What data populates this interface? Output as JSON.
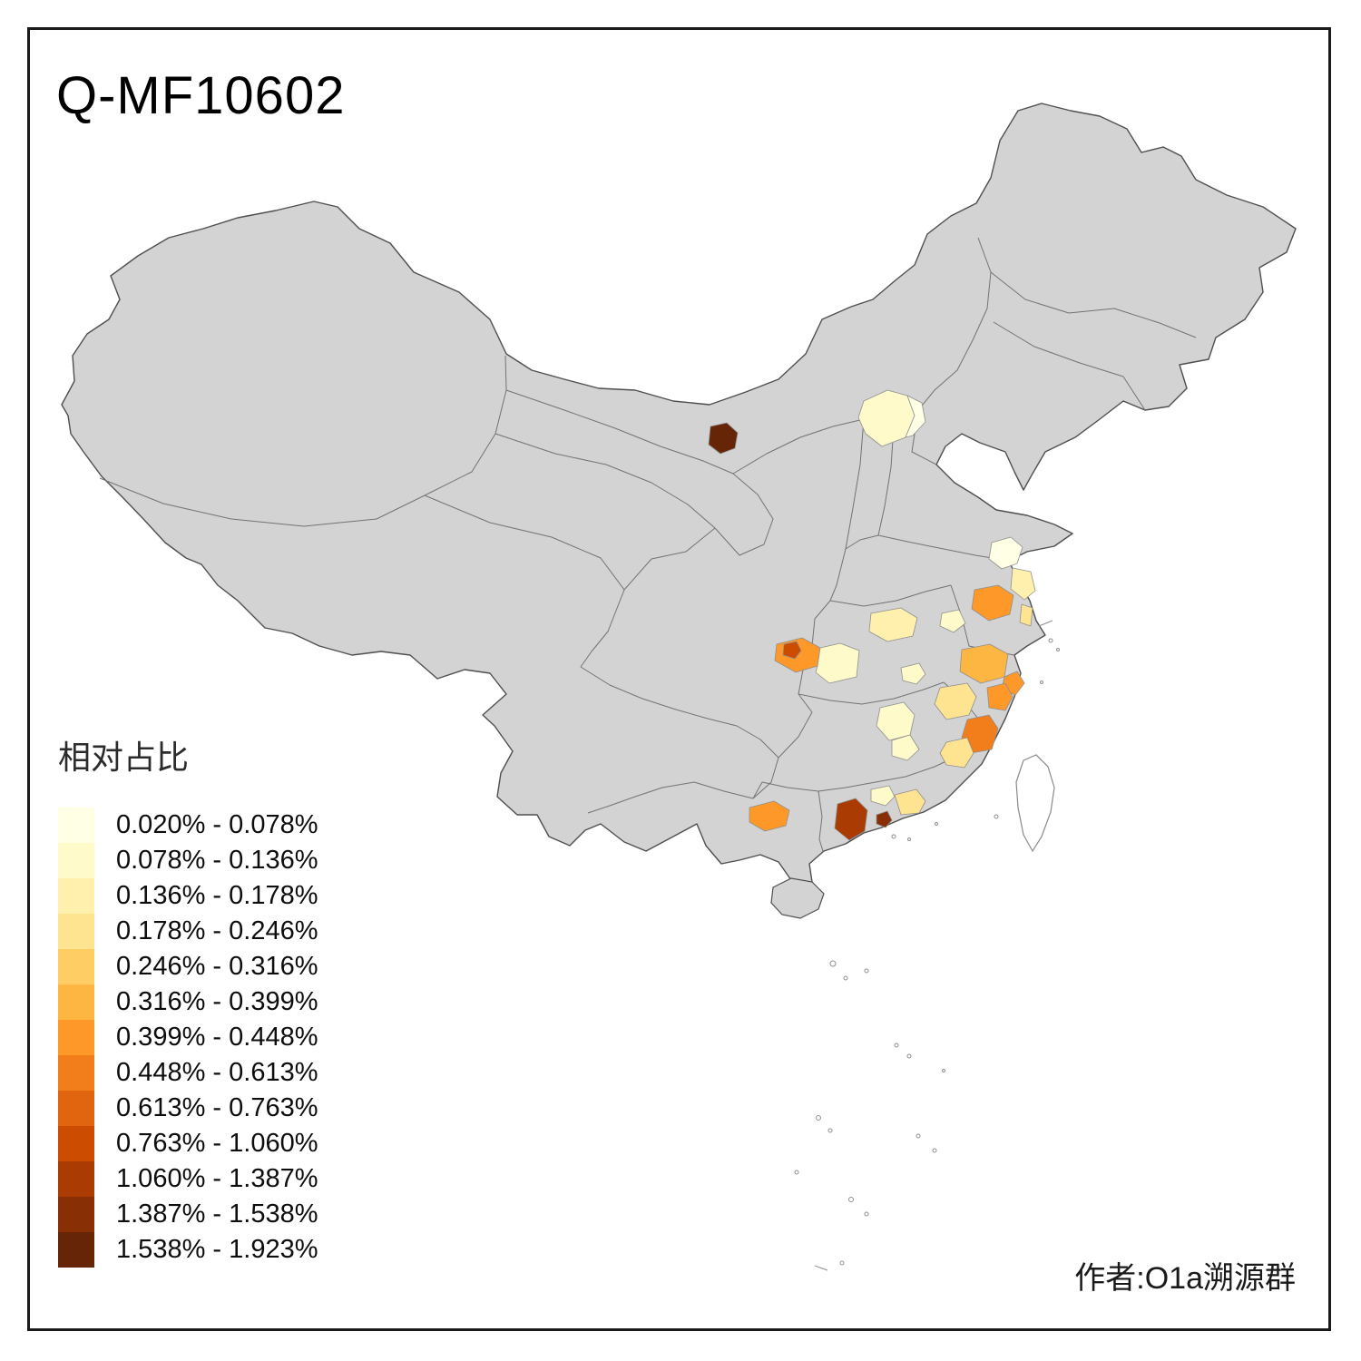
{
  "title": "Q-MF10602",
  "author": "作者:O1a溯源群",
  "legend": {
    "title": "相对占比",
    "items": [
      {
        "label": "0.020% - 0.078%",
        "color": "#FFFFE5"
      },
      {
        "label": "0.078% - 0.136%",
        "color": "#FFFACA"
      },
      {
        "label": "0.136% - 0.178%",
        "color": "#FFF0AE"
      },
      {
        "label": "0.178% - 0.246%",
        "color": "#FEE391"
      },
      {
        "label": "0.246% - 0.316%",
        "color": "#FECE65"
      },
      {
        "label": "0.316% - 0.399%",
        "color": "#FEB642"
      },
      {
        "label": "0.399% - 0.448%",
        "color": "#FE9929"
      },
      {
        "label": "0.448% - 0.613%",
        "color": "#F27E1B"
      },
      {
        "label": "0.613% - 0.763%",
        "color": "#E1640E"
      },
      {
        "label": "0.763% - 1.060%",
        "color": "#CC4C02"
      },
      {
        "label": "1.060% - 1.387%",
        "color": "#AA3C03"
      },
      {
        "label": "1.387% - 1.538%",
        "color": "#882F05"
      },
      {
        "label": "1.538% - 1.923%",
        "color": "#662506"
      }
    ]
  },
  "map": {
    "base_fill": "#D3D3D3",
    "no_data_fill": "#FFFFFF",
    "outline_color": "#4F4F4F",
    "border_color": "#737373",
    "patches": [
      {
        "name": "northwest-dark-spot",
        "color": "#662506",
        "range": "1.538% - 1.923%"
      },
      {
        "name": "beijing-west-cream",
        "color": "#FFFACA",
        "range": "0.078% - 0.136%"
      },
      {
        "name": "beijing-east-pale",
        "color": "#FFFFE5",
        "range": "0.020% - 0.078%"
      },
      {
        "name": "north-jiangsu-pale",
        "color": "#FFFFE5",
        "range": "0.020% - 0.078%"
      },
      {
        "name": "jiangsu-coast-yellow",
        "color": "#FFF0AE",
        "range": "0.136% - 0.178%"
      },
      {
        "name": "central-jiangsu-orange",
        "color": "#FE9929",
        "range": "0.399% - 0.448%"
      },
      {
        "name": "anhui-cream",
        "color": "#FFFACA",
        "range": "0.078% - 0.136%"
      },
      {
        "name": "hubei-east-cream",
        "color": "#FFF0AE",
        "range": "0.136% - 0.178%"
      },
      {
        "name": "chongqing-orange",
        "color": "#FE9929",
        "range": "0.399% - 0.448%"
      },
      {
        "name": "chongqing-dark-spot",
        "color": "#CC4C02",
        "range": "0.763% - 1.060%"
      },
      {
        "name": "hubei-west-cream",
        "color": "#FFFACA",
        "range": "0.078% - 0.136%"
      },
      {
        "name": "north-zhejiang-orange",
        "color": "#FEB642",
        "range": "0.316% - 0.399%"
      },
      {
        "name": "shanghai-south-orange",
        "color": "#FE9929",
        "range": "0.399% - 0.448%"
      },
      {
        "name": "mid-zhejiang-yellow",
        "color": "#FEE391",
        "range": "0.178% - 0.246%"
      },
      {
        "name": "east-zhejiang-orange",
        "color": "#FE9929",
        "range": "0.399% - 0.448%"
      },
      {
        "name": "south-zhejiang-deep-orange",
        "color": "#F27E1B",
        "range": "0.448% - 0.613%"
      },
      {
        "name": "jiangxi-northeast-cream",
        "color": "#FFFACA",
        "range": "0.078% - 0.136%"
      },
      {
        "name": "jiangxi-east-cream",
        "color": "#FFFACA",
        "range": "0.078% - 0.136%"
      },
      {
        "name": "northwest-fujian-yellow",
        "color": "#FEE391",
        "range": "0.178% - 0.246%"
      },
      {
        "name": "guangxi-orange",
        "color": "#FE9929",
        "range": "0.399% - 0.448%"
      },
      {
        "name": "pearl-delta-dark-red",
        "color": "#AA3C03",
        "range": "1.060% - 1.387%"
      },
      {
        "name": "hongkong-adjacent-dark",
        "color": "#882F05",
        "range": "1.387% - 1.538%"
      },
      {
        "name": "east-guangdong-yellow",
        "color": "#FEE391",
        "range": "0.178% - 0.246%"
      },
      {
        "name": "north-guangdong-cream",
        "color": "#FFFACA",
        "range": "0.078% - 0.136%"
      },
      {
        "name": "south-anhui-cream",
        "color": "#FFFACA",
        "range": "0.078% - 0.136%"
      },
      {
        "name": "jiangsu-south-yellow",
        "color": "#FEE391",
        "range": "0.178% - 0.246%"
      }
    ]
  }
}
